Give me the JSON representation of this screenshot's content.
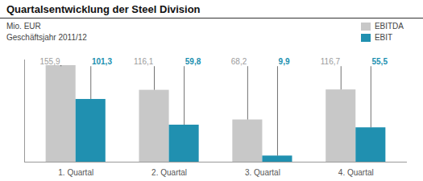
{
  "chart_data": {
    "type": "bar",
    "title": "Quartalsentwicklung der Steel Division",
    "subtitle": [
      "Mio. EUR",
      "Geschäftsjahr 2011/12"
    ],
    "categories": [
      "1. Quartal",
      "2. Quartal",
      "3. Quartal",
      "4. Quartal"
    ],
    "series": [
      {
        "name": "EBITDA",
        "color": "#c8c8c8",
        "values": [
          155.9,
          116.1,
          68.2,
          116.7
        ],
        "value_labels": [
          "155,9",
          "116,1",
          "68,2",
          "116,7"
        ]
      },
      {
        "name": "EBIT",
        "color": "#2090b0",
        "values": [
          101.3,
          59.8,
          9.9,
          55.5
        ],
        "value_labels": [
          "101,3",
          "59,8",
          "9,9",
          "55,5"
        ]
      }
    ],
    "ylim": [
      0,
      165
    ],
    "data_labels": true,
    "tick_labels": "x",
    "grid": false,
    "legend": "upper right"
  }
}
